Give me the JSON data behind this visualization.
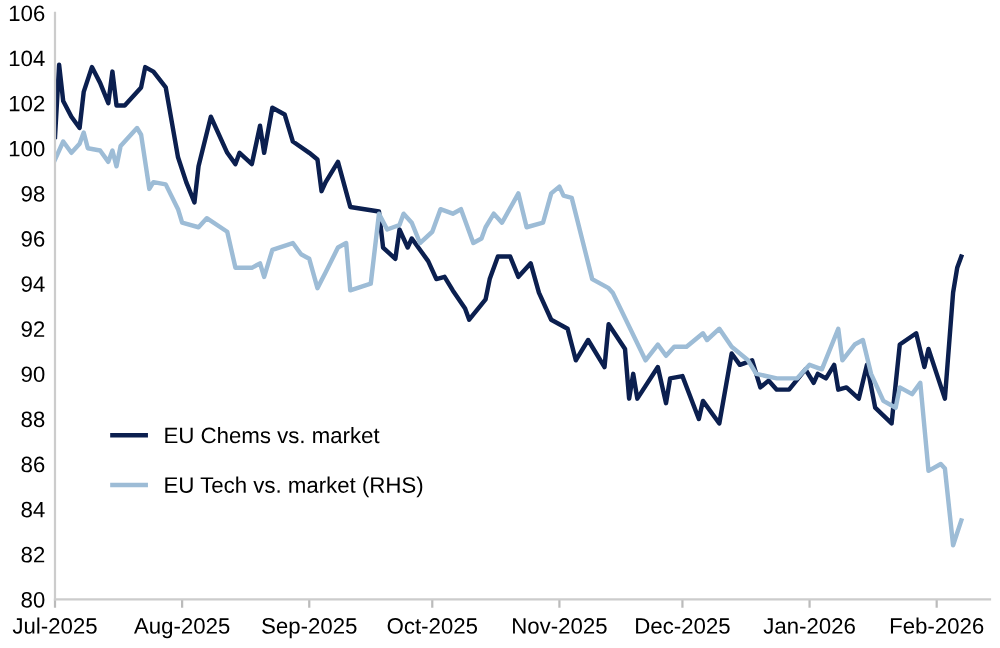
{
  "chart_data": {
    "type": "line",
    "legend": "bottom left",
    "grid": false,
    "marker": "none",
    "line_style": "solid",
    "xlim": [
      "2025-07-01",
      "2026-02-14"
    ],
    "ylim": [
      80,
      106
    ],
    "yticks": [
      80,
      82,
      84,
      86,
      88,
      90,
      92,
      94,
      96,
      98,
      100,
      102,
      104,
      106
    ],
    "xticks": [
      {
        "value": "2025-07-01",
        "label": "Jul-2025"
      },
      {
        "value": "2025-08-01",
        "label": "Aug-2025"
      },
      {
        "value": "2025-09-01",
        "label": "Sep-2025"
      },
      {
        "value": "2025-10-01",
        "label": "Oct-2025"
      },
      {
        "value": "2025-11-01",
        "label": "Nov-2025"
      },
      {
        "value": "2025-12-01",
        "label": "Dec-2025"
      },
      {
        "value": "2026-01-01",
        "label": "Jan-2026"
      },
      {
        "value": "2026-02-01",
        "label": "Feb-2026"
      }
    ],
    "series": [
      {
        "name": "EU Chems vs. market",
        "color": "#0b1f4f",
        "x": [
          "2025-07-01",
          "2025-07-02",
          "2025-07-03",
          "2025-07-05",
          "2025-07-07",
          "2025-07-08",
          "2025-07-10",
          "2025-07-12",
          "2025-07-14",
          "2025-07-15",
          "2025-07-16",
          "2025-07-18",
          "2025-07-22",
          "2025-07-23",
          "2025-07-25",
          "2025-07-28",
          "2025-07-31",
          "2025-08-02",
          "2025-08-04",
          "2025-08-05",
          "2025-08-08",
          "2025-08-12",
          "2025-08-14",
          "2025-08-15",
          "2025-08-18",
          "2025-08-20",
          "2025-08-21",
          "2025-08-23",
          "2025-08-26",
          "2025-08-28",
          "2025-09-01",
          "2025-09-03",
          "2025-09-04",
          "2025-09-05",
          "2025-09-08",
          "2025-09-11",
          "2025-09-18",
          "2025-09-19",
          "2025-09-22",
          "2025-09-23",
          "2025-09-25",
          "2025-09-26",
          "2025-09-30",
          "2025-10-02",
          "2025-10-04",
          "2025-10-06",
          "2025-10-09",
          "2025-10-10",
          "2025-10-14",
          "2025-10-15",
          "2025-10-17",
          "2025-10-20",
          "2025-10-22",
          "2025-10-25",
          "2025-10-27",
          "2025-10-30",
          "2025-11-01",
          "2025-11-03",
          "2025-11-05",
          "2025-11-08",
          "2025-11-12",
          "2025-11-13",
          "2025-11-17",
          "2025-11-18",
          "2025-11-19",
          "2025-11-20",
          "2025-11-25",
          "2025-11-27",
          "2025-11-28",
          "2025-12-01",
          "2025-12-05",
          "2025-12-06",
          "2025-12-10",
          "2025-12-13",
          "2025-12-15",
          "2025-12-18",
          "2025-12-20",
          "2025-12-22",
          "2025-12-24",
          "2025-12-27",
          "2025-12-31",
          "2026-01-02",
          "2026-01-03",
          "2026-01-05",
          "2026-01-07",
          "2026-01-08",
          "2026-01-10",
          "2026-01-13",
          "2026-01-15",
          "2026-01-17",
          "2026-01-21",
          "2026-01-23",
          "2026-01-27",
          "2026-01-29",
          "2026-01-30",
          "2026-02-01",
          "2026-02-03",
          "2026-02-05",
          "2026-02-06",
          "2026-02-07"
        ],
        "values": [
          100.5,
          103.7,
          102.1,
          101.4,
          100.9,
          102.5,
          103.6,
          102.9,
          102.0,
          103.4,
          101.9,
          101.9,
          102.7,
          103.6,
          103.4,
          102.7,
          99.6,
          98.5,
          97.6,
          99.2,
          101.4,
          99.8,
          99.3,
          99.8,
          99.3,
          101.0,
          99.8,
          101.8,
          101.5,
          100.3,
          99.8,
          99.5,
          98.1,
          98.5,
          99.4,
          97.4,
          97.2,
          95.6,
          95.1,
          96.4,
          95.6,
          96.0,
          95.0,
          94.2,
          94.3,
          93.7,
          92.9,
          92.4,
          93.3,
          94.2,
          95.2,
          95.2,
          94.3,
          94.9,
          93.6,
          92.4,
          92.2,
          92.0,
          90.6,
          91.5,
          90.3,
          92.2,
          91.1,
          88.9,
          90.0,
          88.9,
          90.3,
          88.7,
          89.8,
          89.9,
          88.0,
          88.8,
          87.8,
          90.9,
          90.4,
          90.6,
          89.4,
          89.7,
          89.3,
          89.3,
          90.2,
          89.6,
          90.0,
          89.8,
          90.4,
          89.3,
          89.4,
          88.9,
          90.4,
          88.5,
          87.8,
          91.3,
          91.8,
          90.3,
          91.1,
          90.0,
          88.9,
          93.6,
          94.7,
          95.2
        ]
      },
      {
        "name": "EU Tech vs. market (RHS)",
        "color": "#9dbcd6",
        "x": [
          "2025-07-01",
          "2025-07-03",
          "2025-07-05",
          "2025-07-07",
          "2025-07-08",
          "2025-07-09",
          "2025-07-12",
          "2025-07-14",
          "2025-07-15",
          "2025-07-16",
          "2025-07-17",
          "2025-07-21",
          "2025-07-22",
          "2025-07-24",
          "2025-07-25",
          "2025-07-28",
          "2025-07-31",
          "2025-08-01",
          "2025-08-05",
          "2025-08-07",
          "2025-08-12",
          "2025-08-14",
          "2025-08-18",
          "2025-08-20",
          "2025-08-21",
          "2025-08-23",
          "2025-08-28",
          "2025-08-30",
          "2025-09-01",
          "2025-09-03",
          "2025-09-05",
          "2025-09-08",
          "2025-09-10",
          "2025-09-11",
          "2025-09-16",
          "2025-09-18",
          "2025-09-20",
          "2025-09-23",
          "2025-09-24",
          "2025-09-26",
          "2025-09-28",
          "2025-10-01",
          "2025-10-03",
          "2025-10-06",
          "2025-10-08",
          "2025-10-11",
          "2025-10-13",
          "2025-10-14",
          "2025-10-16",
          "2025-10-18",
          "2025-10-22",
          "2025-10-24",
          "2025-10-28",
          "2025-10-30",
          "2025-11-01",
          "2025-11-02",
          "2025-11-04",
          "2025-11-09",
          "2025-11-13",
          "2025-11-14",
          "2025-11-22",
          "2025-11-25",
          "2025-11-27",
          "2025-11-29",
          "2025-12-02",
          "2025-12-06",
          "2025-12-07",
          "2025-12-10",
          "2025-12-13",
          "2025-12-17",
          "2025-12-19",
          "2025-12-24",
          "2025-12-29",
          "2026-01-01",
          "2026-01-04",
          "2026-01-08",
          "2026-01-09",
          "2026-01-12",
          "2026-01-14",
          "2026-01-16",
          "2026-01-19",
          "2026-01-22",
          "2026-01-23",
          "2026-01-26",
          "2026-01-28",
          "2026-01-30",
          "2026-02-02",
          "2026-02-03",
          "2026-02-05",
          "2026-02-07"
        ],
        "values": [
          99.5,
          100.3,
          99.8,
          100.2,
          100.7,
          100.0,
          99.9,
          99.4,
          99.9,
          99.2,
          100.1,
          100.9,
          100.6,
          98.2,
          98.5,
          98.4,
          97.3,
          96.7,
          96.5,
          96.9,
          96.3,
          94.7,
          94.7,
          94.9,
          94.3,
          95.5,
          95.8,
          95.3,
          95.1,
          93.8,
          94.5,
          95.6,
          95.8,
          93.7,
          94.0,
          97.1,
          96.4,
          96.6,
          97.1,
          96.7,
          95.8,
          96.3,
          97.3,
          97.1,
          97.3,
          95.8,
          96.0,
          96.5,
          97.1,
          96.7,
          98.0,
          96.5,
          96.7,
          98.0,
          98.3,
          97.9,
          97.8,
          94.2,
          93.8,
          93.6,
          90.6,
          91.3,
          90.8,
          91.2,
          91.2,
          91.8,
          91.5,
          92.0,
          91.2,
          90.6,
          90.0,
          89.8,
          89.8,
          90.4,
          90.2,
          92.0,
          90.6,
          91.3,
          91.5,
          90.0,
          88.8,
          88.5,
          89.4,
          89.1,
          89.6,
          85.7,
          86.0,
          85.8,
          82.4,
          83.5
        ]
      }
    ]
  }
}
